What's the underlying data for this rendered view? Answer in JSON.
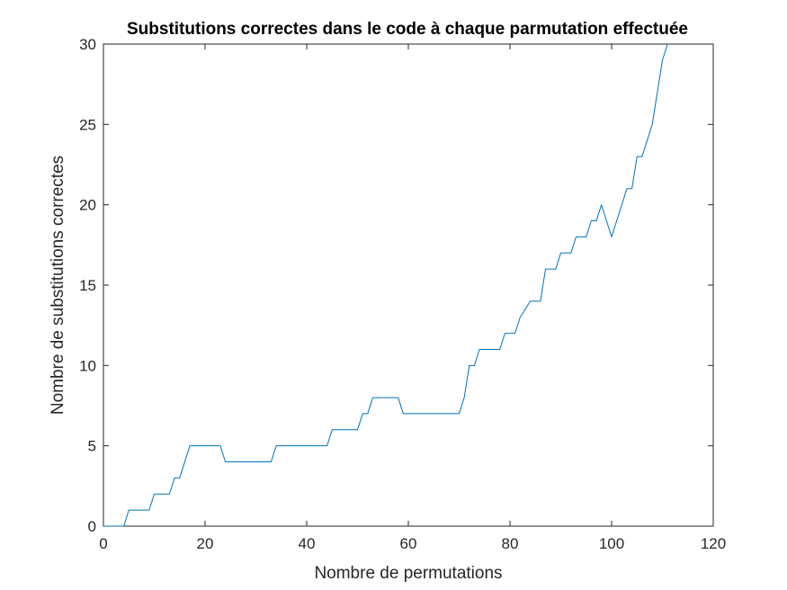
{
  "colors": {
    "line": "#0072BD",
    "axis": "#262626",
    "background": "#ffffff"
  },
  "chart_data": {
    "type": "line",
    "title": "Substitutions correctes dans le code à chaque parmutation effectuée",
    "xlabel": "Nombre de permutations",
    "ylabel": "Nombre de substitutions correctes",
    "xlim": [
      0,
      120
    ],
    "ylim": [
      0,
      30
    ],
    "xticks": [
      0,
      20,
      40,
      60,
      80,
      100,
      120
    ],
    "yticks": [
      0,
      5,
      10,
      15,
      20,
      25,
      30
    ],
    "grid": false,
    "series": [
      {
        "x": [
          0,
          4,
          5,
          9,
          10,
          13,
          14,
          15,
          17,
          23,
          24,
          33,
          34,
          44,
          45,
          50,
          51,
          52,
          53,
          58,
          59,
          70,
          71,
          72,
          73,
          74,
          78,
          79,
          81,
          82,
          84,
          86,
          87,
          89,
          90,
          92,
          93,
          95,
          96,
          97,
          98,
          100,
          103,
          104,
          105,
          106,
          108,
          110,
          111
        ],
        "y": [
          0,
          0,
          1,
          1,
          2,
          2,
          3,
          3,
          5,
          5,
          4,
          4,
          5,
          5,
          6,
          6,
          7,
          7,
          8,
          8,
          7,
          7,
          8,
          10,
          10,
          11,
          11,
          12,
          12,
          13,
          14,
          14,
          16,
          16,
          17,
          17,
          18,
          18,
          19,
          19,
          20,
          18,
          21,
          21,
          23,
          23,
          25,
          29,
          30
        ]
      }
    ]
  }
}
